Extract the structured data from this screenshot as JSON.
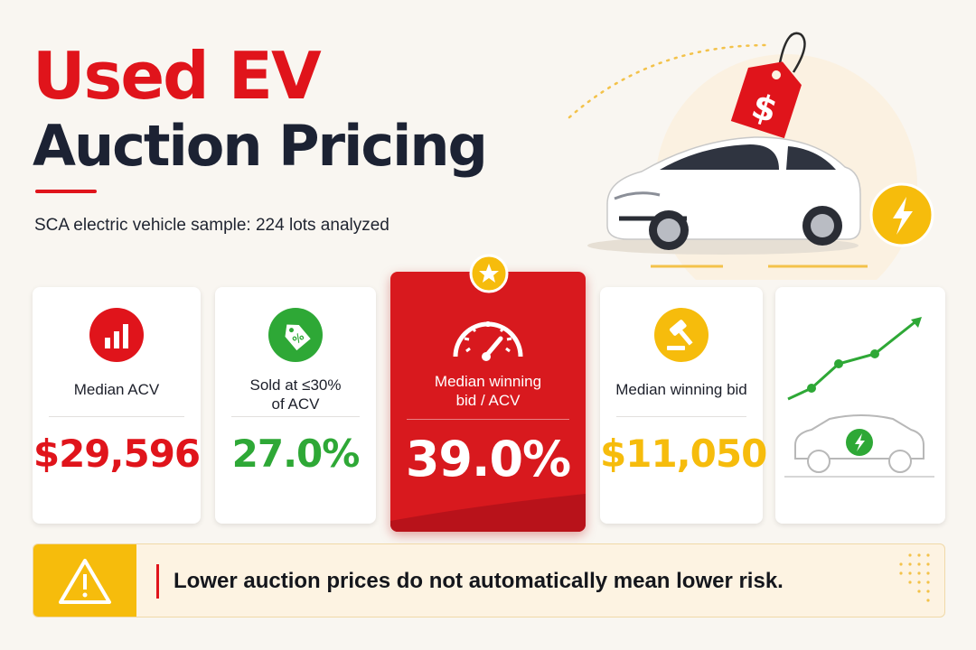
{
  "title": {
    "line1": "Used EV",
    "line2": "Auction Pricing"
  },
  "subtitle": "SCA electric vehicle sample: 224 lots analyzed",
  "colors": {
    "red": "#e0141b",
    "green": "#2ea836",
    "yellow": "#f6bc0c",
    "navy": "#1c2233"
  },
  "cards": [
    {
      "label": "Median ACV",
      "value": "$29,596",
      "icon": "bar-chart-icon",
      "value_color": "#e0141b"
    },
    {
      "label_line1": "Sold at ≤30%",
      "label_line2": "of ACV",
      "value": "27.0%",
      "icon": "percent-tag-icon",
      "value_color": "#2ea836"
    },
    {
      "label_line1": "Median winning",
      "label_line2": "bid / ACV",
      "value": "39.0%",
      "icon": "speedometer-icon",
      "badge": "star-icon",
      "value_color": "#ffffff"
    },
    {
      "label": "Median winning bid",
      "value": "$11,050",
      "icon": "gavel-icon",
      "value_color": "#f6bc0c"
    },
    {
      "icon": "trend-up-ev-car-icon"
    }
  ],
  "hero": {
    "icons": [
      "price-tag-icon",
      "electric-car-icon",
      "lightning-bolt-icon"
    ],
    "tag_symbol": "$"
  },
  "warning": {
    "icon": "warning-triangle-icon",
    "text": "Lower auction prices do not automatically mean lower risk."
  }
}
